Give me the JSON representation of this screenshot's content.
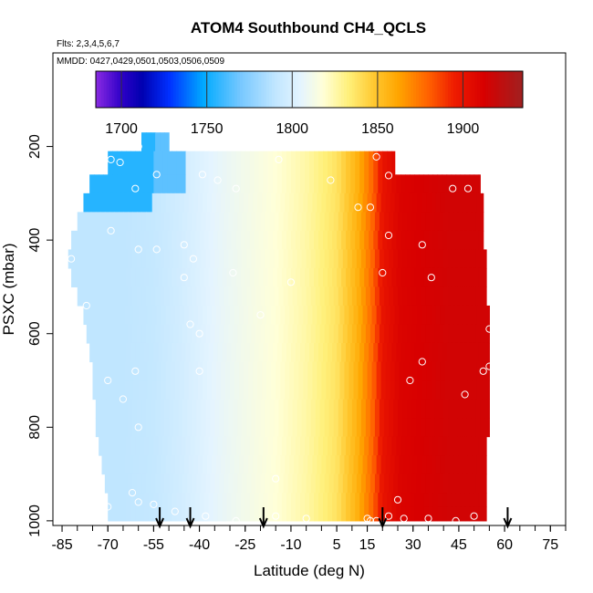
{
  "chart_data": {
    "type": "heatmap",
    "title": "ATOM4 Southbound CH4_QCLS",
    "annotations": [
      "Flts: 2,3,4,5,6,7",
      "MMDD: 0427,0429,0501,0503,0506,0509"
    ],
    "xlabel": "Latitude (deg N)",
    "ylabel": "PSXC (mbar)",
    "xlim": [
      -88,
      80
    ],
    "ylim": [
      1010,
      0
    ],
    "x_ticks": [
      -85,
      -70,
      -55,
      -40,
      -25,
      -10,
      5,
      15,
      30,
      45,
      60,
      75
    ],
    "y_ticks": [
      200,
      400,
      600,
      800,
      1000
    ],
    "colorbar": {
      "range": [
        1685,
        1935
      ],
      "ticks": [
        1700,
        1750,
        1800,
        1850,
        1900
      ],
      "stops": [
        {
          "v": 1685,
          "c": "#8a2be2"
        },
        {
          "v": 1700,
          "c": "#2f00c8"
        },
        {
          "v": 1712,
          "c": "#0000b0"
        },
        {
          "v": 1728,
          "c": "#0030ff"
        },
        {
          "v": 1748,
          "c": "#00aaff"
        },
        {
          "v": 1770,
          "c": "#78c8ff"
        },
        {
          "v": 1790,
          "c": "#c0e6ff"
        },
        {
          "v": 1805,
          "c": "#e4f4ff"
        },
        {
          "v": 1818,
          "c": "#ffffd8"
        },
        {
          "v": 1833,
          "c": "#fff07a"
        },
        {
          "v": 1848,
          "c": "#ffc830"
        },
        {
          "v": 1862,
          "c": "#ffa500"
        },
        {
          "v": 1880,
          "c": "#ff6000"
        },
        {
          "v": 1895,
          "c": "#ee1c00"
        },
        {
          "v": 1912,
          "c": "#d80000"
        },
        {
          "v": 1935,
          "c": "#a02020"
        }
      ]
    },
    "field": {
      "lat_nodes": [
        -88,
        -73,
        -65,
        -55,
        -45,
        -35,
        -25,
        -15,
        -5,
        5,
        12,
        17,
        20,
        26,
        32,
        42,
        55
      ],
      "value_nodes": [
        1790,
        1790,
        1790,
        1792,
        1798,
        1806,
        1812,
        1818,
        1826,
        1838,
        1858,
        1880,
        1900,
        1910,
        1912,
        1915,
        1915
      ],
      "upper_adjust": [
        {
          "lat_max": -55,
          "p_max": 330,
          "value": 1755
        },
        {
          "lat_max": -45,
          "p_max": 310,
          "value": 1765
        }
      ]
    },
    "coverage": [
      {
        "p": [
          170,
          210
        ],
        "lat": [
          -59,
          -50
        ]
      },
      {
        "p": [
          210,
          260
        ],
        "lat": [
          -70,
          24
        ]
      },
      {
        "p": [
          260,
          300
        ],
        "lat": [
          -76,
          52
        ]
      },
      {
        "p": [
          300,
          340
        ],
        "lat": [
          -78,
          53
        ]
      },
      {
        "p": [
          340,
          380
        ],
        "lat": [
          -80,
          53
        ]
      },
      {
        "p": [
          380,
          420
        ],
        "lat": [
          -82,
          53
        ]
      },
      {
        "p": [
          420,
          460
        ],
        "lat": [
          -83,
          54
        ]
      },
      {
        "p": [
          460,
          500
        ],
        "lat": [
          -82,
          54
        ]
      },
      {
        "p": [
          500,
          540
        ],
        "lat": [
          -80,
          54
        ]
      },
      {
        "p": [
          540,
          580
        ],
        "lat": [
          -78,
          55
        ]
      },
      {
        "p": [
          580,
          620
        ],
        "lat": [
          -77,
          55
        ]
      },
      {
        "p": [
          620,
          660
        ],
        "lat": [
          -76,
          55
        ]
      },
      {
        "p": [
          660,
          700
        ],
        "lat": [
          -75,
          55
        ]
      },
      {
        "p": [
          700,
          740
        ],
        "lat": [
          -75,
          55
        ]
      },
      {
        "p": [
          740,
          780
        ],
        "lat": [
          -74,
          55
        ]
      },
      {
        "p": [
          780,
          820
        ],
        "lat": [
          -74,
          55
        ]
      },
      {
        "p": [
          820,
          860
        ],
        "lat": [
          -73,
          54
        ]
      },
      {
        "p": [
          860,
          900
        ],
        "lat": [
          -72,
          54
        ]
      },
      {
        "p": [
          900,
          940
        ],
        "lat": [
          -71,
          54
        ]
      },
      {
        "p": [
          940,
          970
        ],
        "lat": [
          -70,
          54
        ]
      },
      {
        "p": [
          970,
          1000
        ],
        "lat": [
          -70,
          54
        ]
      }
    ],
    "obs_points": [
      {
        "lat": -82,
        "p": 240
      },
      {
        "lat": -69,
        "p": 228
      },
      {
        "lat": -66,
        "p": 234
      },
      {
        "lat": -60,
        "p": 200
      },
      {
        "lat": -61,
        "p": 290
      },
      {
        "lat": -54,
        "p": 260
      },
      {
        "lat": -39,
        "p": 260
      },
      {
        "lat": -34,
        "p": 272
      },
      {
        "lat": -28,
        "p": 290
      },
      {
        "lat": -14,
        "p": 228
      },
      {
        "lat": 3,
        "p": 272
      },
      {
        "lat": 18,
        "p": 222
      },
      {
        "lat": 22,
        "p": 262
      },
      {
        "lat": 43,
        "p": 290
      },
      {
        "lat": 48,
        "p": 290
      },
      {
        "lat": 12,
        "p": 330
      },
      {
        "lat": 16,
        "p": 330
      },
      {
        "lat": 22,
        "p": 390
      },
      {
        "lat": 33,
        "p": 410
      },
      {
        "lat": -82,
        "p": 440
      },
      {
        "lat": -69,
        "p": 380
      },
      {
        "lat": -60,
        "p": 420
      },
      {
        "lat": -54,
        "p": 420
      },
      {
        "lat": -45,
        "p": 410
      },
      {
        "lat": -42,
        "p": 440
      },
      {
        "lat": -29,
        "p": 470
      },
      {
        "lat": -45,
        "p": 480
      },
      {
        "lat": -10,
        "p": 490
      },
      {
        "lat": 20,
        "p": 470
      },
      {
        "lat": 36,
        "p": 480
      },
      {
        "lat": -77,
        "p": 540
      },
      {
        "lat": -43,
        "p": 580
      },
      {
        "lat": -20,
        "p": 560
      },
      {
        "lat": -40,
        "p": 600
      },
      {
        "lat": 55,
        "p": 590
      },
      {
        "lat": 33,
        "p": 660
      },
      {
        "lat": 29,
        "p": 700
      },
      {
        "lat": 53,
        "p": 680
      },
      {
        "lat": 55,
        "p": 670
      },
      {
        "lat": -40,
        "p": 680
      },
      {
        "lat": -61,
        "p": 680
      },
      {
        "lat": -70,
        "p": 700
      },
      {
        "lat": -65,
        "p": 740
      },
      {
        "lat": 47,
        "p": 730
      },
      {
        "lat": -60,
        "p": 800
      },
      {
        "lat": -15,
        "p": 910
      },
      {
        "lat": -60,
        "p": 960
      },
      {
        "lat": -55,
        "p": 965
      },
      {
        "lat": -62,
        "p": 940
      },
      {
        "lat": -48,
        "p": 980
      },
      {
        "lat": -38,
        "p": 990
      },
      {
        "lat": -28,
        "p": 1000
      },
      {
        "lat": -15,
        "p": 990
      },
      {
        "lat": -5,
        "p": 995
      },
      {
        "lat": 15,
        "p": 995
      },
      {
        "lat": 18,
        "p": 1000
      },
      {
        "lat": 16,
        "p": 1000
      },
      {
        "lat": 22,
        "p": 990
      },
      {
        "lat": 27,
        "p": 995
      },
      {
        "lat": 35,
        "p": 995
      },
      {
        "lat": 44,
        "p": 1000
      },
      {
        "lat": 50,
        "p": 990
      },
      {
        "lat": 25,
        "p": 955
      },
      {
        "lat": -70,
        "p": 970
      }
    ],
    "arrows_lat": [
      -53,
      -43,
      -19,
      20,
      61
    ]
  }
}
